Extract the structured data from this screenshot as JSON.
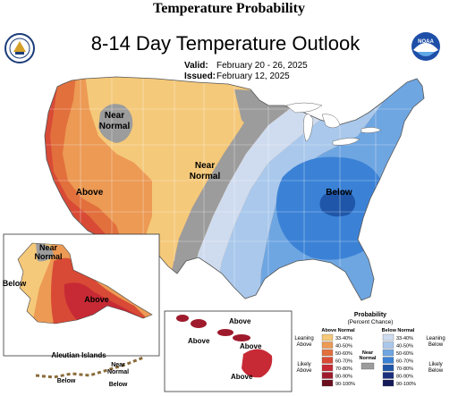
{
  "page_header": "Temperature Probability",
  "map": {
    "title": "8-14 Day Temperature Outlook",
    "valid_label": "Valid:",
    "valid_value": "February 20 - 26, 2025",
    "issued_label": "Issued:",
    "issued_value": "February 12, 2025",
    "regions": {
      "near_normal_west_line1": "Near",
      "near_normal_west_line2": "Normal",
      "near_normal_central_line1": "Near",
      "near_normal_central_line2": "Normal",
      "above_west": "Above",
      "below_east": "Below"
    },
    "alaska": {
      "near_line1": "Near",
      "near_line2": "Normal",
      "below": "Below",
      "above": "Above",
      "aleutian_title": "Aleutian Islands",
      "aleutian_near_line1": "Near",
      "aleutian_near_line2": "Normal",
      "aleutian_below_left": "Below",
      "aleutian_below_right": "Below"
    },
    "hawaii": {
      "above_1": "Above",
      "above_2": "Above",
      "above_3": "Above",
      "above_4": "Above"
    }
  },
  "legend": {
    "title": "Probability",
    "subtitle": "(Percent Chance)",
    "above_header": "Above Normal",
    "below_header": "Below Normal",
    "leaning_above_1": "Leaning",
    "leaning_above_2": "Above",
    "likely_above_1": "Likely",
    "likely_above_2": "Above",
    "near_1": "Near",
    "near_2": "Normal",
    "leaning_below_1": "Leaning",
    "leaning_below_2": "Below",
    "likely_below_1": "Likely",
    "likely_below_2": "Below",
    "above_items": [
      {
        "label": "33-40%",
        "color": "#f5c97a"
      },
      {
        "label": "40-50%",
        "color": "#ec9a54"
      },
      {
        "label": "50-60%",
        "color": "#e2703d"
      },
      {
        "label": "60-70%",
        "color": "#d84a36"
      },
      {
        "label": "70-80%",
        "color": "#c72a35"
      },
      {
        "label": "80-90%",
        "color": "#9e1a2c"
      },
      {
        "label": "90-100%",
        "color": "#6b0f1e"
      }
    ],
    "below_items": [
      {
        "label": "33-40%",
        "color": "#cfdcef"
      },
      {
        "label": "40-50%",
        "color": "#a9c8ec"
      },
      {
        "label": "50-60%",
        "color": "#6ea6e2"
      },
      {
        "label": "60-70%",
        "color": "#3b82d6"
      },
      {
        "label": "70-80%",
        "color": "#1f56a9"
      },
      {
        "label": "80-90%",
        "color": "#1a2f7d"
      },
      {
        "label": "90-100%",
        "color": "#141a57"
      }
    ],
    "near_color": "#9c9c9c"
  },
  "logos": {
    "left": "noaa-commerce-seal",
    "right": "noaa-logo"
  }
}
